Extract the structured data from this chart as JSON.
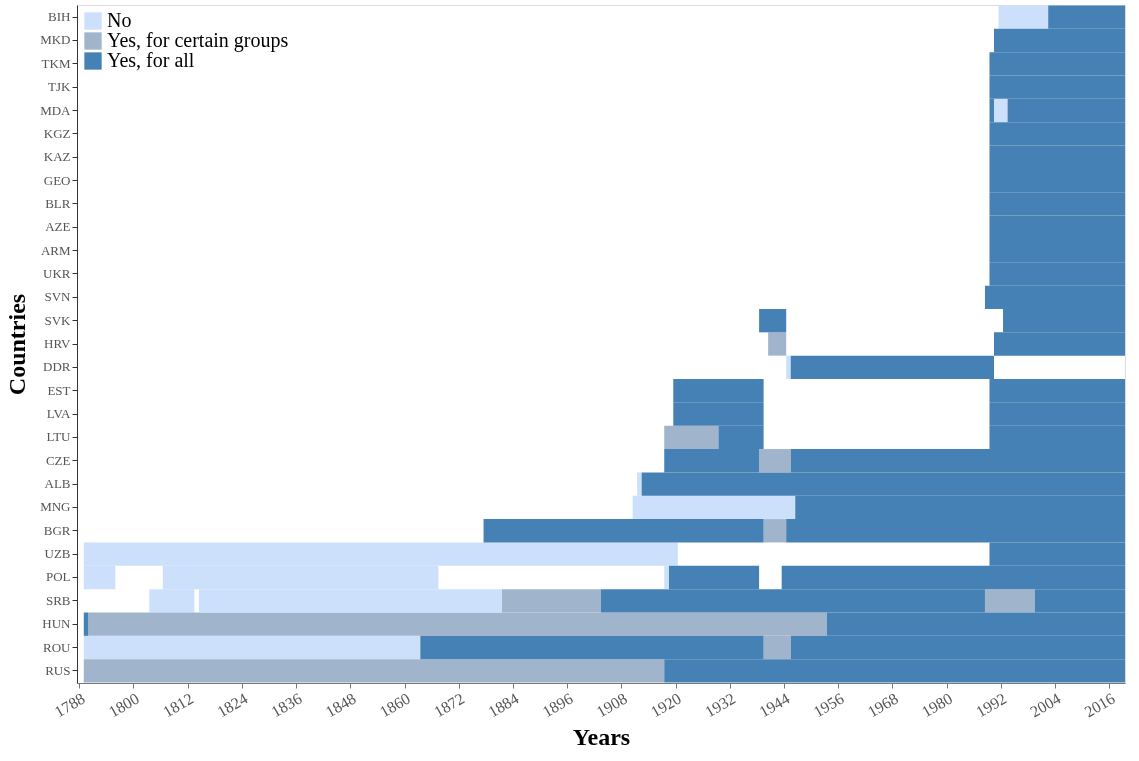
{
  "chart_data": {
    "type": "bar",
    "orientation": "horizontal",
    "xlabel": "Years",
    "ylabel": "Countries",
    "legend": "top left",
    "grid": false,
    "categories": [
      "BIH",
      "MKD",
      "TKM",
      "TJK",
      "MDA",
      "KGZ",
      "KAZ",
      "GEO",
      "BLR",
      "AZE",
      "ARM",
      "UKR",
      "SVN",
      "SVK",
      "HRV",
      "DDR",
      "EST",
      "LVA",
      "LTU",
      "CZE",
      "ALB",
      "MNG",
      "BGR",
      "UZB",
      "POL",
      "SRB",
      "HUN",
      "ROU",
      "RUS"
    ],
    "xlim": [
      1787.5,
      2019.5
    ],
    "xticks": [
      1788,
      1800,
      1812,
      1824,
      1836,
      1848,
      1860,
      1872,
      1884,
      1896,
      1908,
      1920,
      1932,
      1944,
      1956,
      1968,
      1980,
      1992,
      2004,
      2016
    ],
    "series": [
      {
        "name": "No",
        "color": "#cce0fc",
        "base": [
          1991.5,
          null,
          null,
          null,
          1990.5,
          null,
          null,
          null,
          null,
          null,
          null,
          null,
          null,
          null,
          null,
          1944.5,
          null,
          null,
          null,
          null,
          1911.5,
          1910.5,
          null,
          1789,
          1789,
          1803.5,
          null,
          1789,
          null
        ],
        "values": [
          11,
          null,
          null,
          null,
          3,
          null,
          null,
          null,
          null,
          null,
          null,
          null,
          null,
          null,
          null,
          1,
          null,
          null,
          null,
          null,
          1,
          36,
          null,
          131.5,
          7,
          10,
          null,
          74.5,
          null
        ]
      },
      {
        "name": "Yes, for certain groups",
        "color": "#a0b5cc",
        "base": [
          null,
          null,
          null,
          null,
          null,
          null,
          null,
          null,
          null,
          null,
          null,
          null,
          null,
          null,
          1940.5,
          null,
          null,
          null,
          1917.5,
          1938.5,
          null,
          null,
          1939.5,
          null,
          null,
          1881.5,
          1790,
          1939.5,
          1789
        ],
        "values": [
          null,
          null,
          null,
          null,
          null,
          null,
          null,
          null,
          null,
          null,
          null,
          null,
          null,
          null,
          4,
          null,
          null,
          null,
          12,
          7,
          null,
          null,
          5,
          null,
          null,
          22,
          163.5,
          6,
          128.5
        ]
      },
      {
        "name": "Yes, for all",
        "color": "#4581b4",
        "base": [
          2002.5,
          1990.5,
          1989.5,
          1989.5,
          1989.5,
          1989.5,
          1989.5,
          1989.5,
          1989.5,
          1989.5,
          1989.5,
          1989.5,
          1988.5,
          1938.5,
          1990.5,
          1945.5,
          1919.5,
          1919.5,
          1929.5,
          1917.5,
          1912.5,
          1946.5,
          1877.5,
          1989.5,
          1918.5,
          1903.5,
          1789,
          1863.5,
          1917.5
        ],
        "values": [
          17,
          29,
          30,
          30,
          1,
          30,
          30,
          30,
          30,
          30,
          30,
          30,
          31,
          6,
          29,
          45,
          20,
          20,
          10,
          21,
          107,
          73,
          62,
          30,
          20,
          85,
          1,
          76,
          102
        ]
      },
      {
        "color": "#cce0fc",
        "base": [
          null,
          null,
          null,
          null,
          null,
          null,
          null,
          null,
          null,
          null,
          null,
          null,
          null,
          null,
          null,
          null,
          null,
          null,
          null,
          null,
          null,
          null,
          null,
          null,
          1806.5,
          1814.5,
          null,
          null,
          null
        ],
        "values": [
          null,
          null,
          null,
          null,
          null,
          null,
          null,
          null,
          null,
          null,
          null,
          null,
          null,
          null,
          null,
          null,
          null,
          null,
          null,
          null,
          null,
          null,
          null,
          null,
          61,
          67,
          null,
          null,
          null
        ]
      },
      {
        "color": "#cce0fc",
        "base": [
          null,
          null,
          null,
          null,
          null,
          null,
          null,
          null,
          null,
          null,
          null,
          null,
          null,
          null,
          null,
          null,
          null,
          null,
          null,
          null,
          null,
          null,
          null,
          null,
          1917.5,
          null,
          null,
          null,
          null
        ],
        "values": [
          null,
          null,
          null,
          null,
          null,
          null,
          null,
          null,
          null,
          null,
          null,
          null,
          null,
          null,
          null,
          null,
          null,
          null,
          null,
          null,
          null,
          null,
          null,
          null,
          1,
          null,
          null,
          null,
          null
        ]
      },
      {
        "color": "#a0b5cc",
        "base": [
          null,
          null,
          null,
          null,
          null,
          null,
          null,
          null,
          null,
          null,
          null,
          null,
          null,
          null,
          null,
          null,
          null,
          null,
          null,
          null,
          null,
          null,
          null,
          null,
          null,
          1988.5,
          null,
          null,
          null
        ],
        "values": [
          null,
          null,
          null,
          null,
          null,
          null,
          null,
          null,
          null,
          null,
          null,
          null,
          null,
          null,
          null,
          null,
          null,
          null,
          null,
          null,
          null,
          null,
          null,
          null,
          null,
          11,
          null,
          null,
          null
        ]
      },
      {
        "color": "#4581b4",
        "base": [
          null,
          null,
          null,
          null,
          1993.5,
          null,
          null,
          null,
          null,
          null,
          null,
          null,
          null,
          1992.5,
          null,
          null,
          1989.5,
          1989.5,
          1989.5,
          1945.5,
          null,
          null,
          1944.5,
          null,
          1943.5,
          1999.5,
          1953.5,
          1945.5,
          null
        ],
        "values": [
          null,
          null,
          null,
          null,
          26,
          null,
          null,
          null,
          null,
          null,
          null,
          null,
          null,
          27,
          null,
          null,
          30,
          30,
          30,
          74,
          null,
          null,
          75,
          null,
          76,
          20,
          66,
          74,
          null
        ]
      }
    ]
  }
}
